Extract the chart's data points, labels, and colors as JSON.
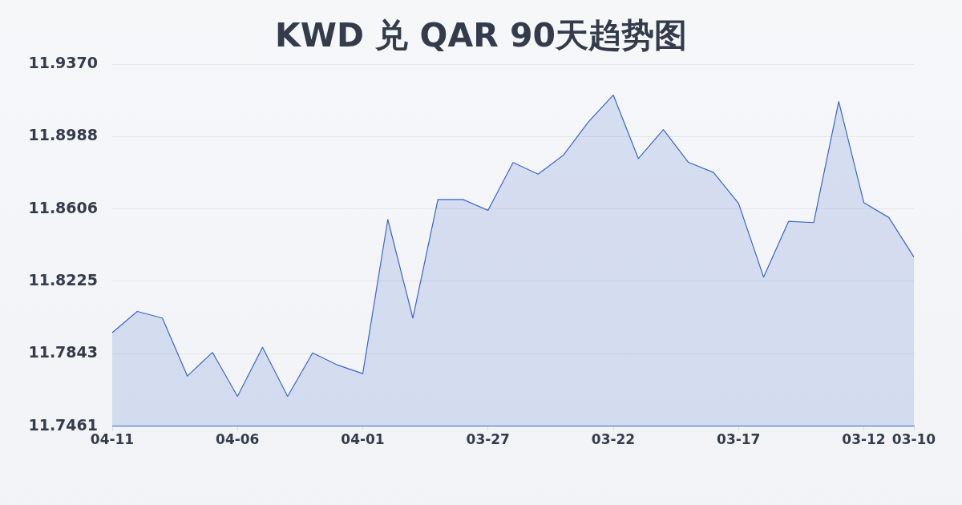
{
  "chart_data": {
    "type": "area",
    "title": "KWD 兑 QAR 90天趋势图",
    "categories": [
      "04-11",
      null,
      null,
      null,
      null,
      "04-06",
      null,
      null,
      null,
      null,
      "04-01",
      null,
      null,
      null,
      null,
      "03-27",
      null,
      null,
      null,
      null,
      "03-22",
      null,
      null,
      null,
      null,
      "03-17",
      null,
      null,
      null,
      null,
      "03-12",
      null,
      "03-10"
    ],
    "values": [
      11.7954,
      11.8066,
      11.8031,
      11.7725,
      11.785,
      11.7618,
      11.7877,
      11.7618,
      11.7847,
      11.7783,
      11.7738,
      11.8551,
      11.8031,
      11.8656,
      11.8656,
      11.8599,
      11.8851,
      11.879,
      11.8889,
      11.9064,
      11.9207,
      11.8872,
      11.9025,
      11.8852,
      11.8799,
      11.8636,
      11.8247,
      11.8541,
      11.8534,
      11.9173,
      11.864,
      11.8561,
      11.8353
    ],
    "color": "#3a66cc",
    "ylim": [
      11.7461,
      11.937
    ],
    "yticks": [
      11.7461,
      11.7843,
      11.8225,
      11.8606,
      11.8988,
      {
        "value": 11.937,
        "label": "11.9370"
      }
    ],
    "grid": "y",
    "legend": false
  }
}
